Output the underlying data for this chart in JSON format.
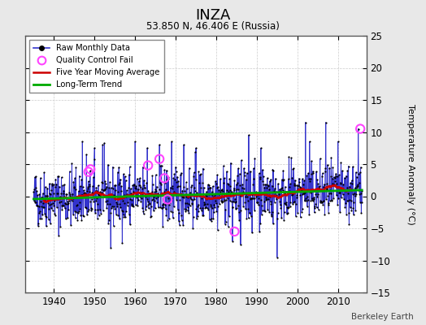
{
  "title": "INZA",
  "subtitle": "53.850 N, 46.406 E (Russia)",
  "ylabel": "Temperature Anomaly (°C)",
  "credit": "Berkeley Earth",
  "xlim": [
    1933,
    2017
  ],
  "ylim": [
    -15,
    25
  ],
  "yticks": [
    -15,
    -10,
    -5,
    0,
    5,
    10,
    15,
    20,
    25
  ],
  "xticks": [
    1940,
    1950,
    1960,
    1970,
    1980,
    1990,
    2000,
    2010
  ],
  "fig_bg_color": "#e8e8e8",
  "plot_bg_color": "#ffffff",
  "raw_line_color": "#3333cc",
  "raw_dot_color": "#000000",
  "moving_avg_color": "#cc0000",
  "trend_color": "#00aa00",
  "qc_fail_color": "#ff44ff",
  "grid_color": "#cccccc",
  "seed": 42,
  "start_year": 1935.0,
  "end_year": 2015.917,
  "noise_std": 2.2,
  "trend_slope": 0.012,
  "trend_intercept": -0.4,
  "spikes": [
    [
      1947,
      8.5
    ],
    [
      1948,
      6.5
    ],
    [
      1950,
      7.5
    ],
    [
      1952,
      8.0
    ],
    [
      1954,
      -8.0
    ],
    [
      1960,
      8.5
    ],
    [
      1963,
      7.5
    ],
    [
      1966,
      8.0
    ],
    [
      1969,
      8.5
    ],
    [
      1972,
      8.0
    ],
    [
      1975,
      7.5
    ],
    [
      1984,
      -7.0
    ],
    [
      1986,
      -7.5
    ],
    [
      1988,
      9.5
    ],
    [
      1991,
      7.5
    ],
    [
      1995,
      -9.5
    ],
    [
      2002,
      11.5
    ],
    [
      2003,
      8.5
    ],
    [
      2007,
      11.5
    ],
    [
      2010,
      8.5
    ],
    [
      2015,
      10.5
    ]
  ],
  "qc_fails": [
    [
      1948.5,
      3.8
    ],
    [
      1949.0,
      4.2
    ],
    [
      1963.2,
      4.8
    ],
    [
      1966.0,
      5.8
    ],
    [
      1967.2,
      2.8
    ],
    [
      1968.0,
      -0.5
    ],
    [
      1984.5,
      -5.5
    ],
    [
      2015.5,
      10.5
    ]
  ]
}
